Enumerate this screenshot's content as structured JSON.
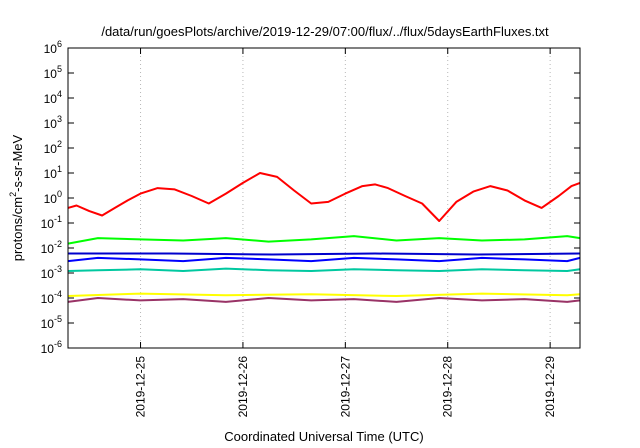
{
  "chart_data": {
    "type": "line",
    "title": "/data/run/goesPlots/archive/2019-12-29/07:00/flux/../flux/5daysEarthFluxes.txt",
    "xlabel": "Coordinated Universal Time (UTC)",
    "ylabel": {
      "prefix": "protons/cm",
      "superscript": "2",
      "suffix": "-s-sr-MeV"
    },
    "y_scale": "log",
    "ylim": [
      1e-06,
      1000000.0
    ],
    "y_ticks": [
      {
        "value": 1e-06,
        "base": "10",
        "exp": "-6"
      },
      {
        "value": 1e-05,
        "base": "10",
        "exp": "-5"
      },
      {
        "value": 0.0001,
        "base": "10",
        "exp": "-4"
      },
      {
        "value": 0.001,
        "base": "10",
        "exp": "-3"
      },
      {
        "value": 0.01,
        "base": "10",
        "exp": "-2"
      },
      {
        "value": 0.1,
        "base": "10",
        "exp": "-1"
      },
      {
        "value": 1,
        "base": "10",
        "exp": "0"
      },
      {
        "value": 10,
        "base": "10",
        "exp": "1"
      },
      {
        "value": 100,
        "base": "10",
        "exp": "2"
      },
      {
        "value": 1000,
        "base": "10",
        "exp": "3"
      },
      {
        "value": 10000,
        "base": "10",
        "exp": "4"
      },
      {
        "value": 100000,
        "base": "10",
        "exp": "5"
      },
      {
        "value": 1000000,
        "base": "10",
        "exp": "6"
      }
    ],
    "xlim": [
      "2019-12-24T07:00",
      "2019-12-29T07:00"
    ],
    "x_ticks": [
      {
        "value": "2019-12-25T00:00",
        "label": "2019-12-25"
      },
      {
        "value": "2019-12-26T00:00",
        "label": "2019-12-26"
      },
      {
        "value": "2019-12-27T00:00",
        "label": "2019-12-27"
      },
      {
        "value": "2019-12-28T00:00",
        "label": "2019-12-28"
      },
      {
        "value": "2019-12-29T00:00",
        "label": "2019-12-29"
      }
    ],
    "grid": true,
    "series": [
      {
        "color": "#ff0000",
        "x": [
          "2019-12-24T07:00",
          "2019-12-24T09:00",
          "2019-12-24T12:00",
          "2019-12-24T15:00",
          "2019-12-24T18:00",
          "2019-12-24T21:00",
          "2019-12-25T00:00",
          "2019-12-25T04:00",
          "2019-12-25T08:00",
          "2019-12-25T12:00",
          "2019-12-25T16:00",
          "2019-12-25T20:00",
          "2019-12-26T00:00",
          "2019-12-26T04:00",
          "2019-12-26T08:00",
          "2019-12-26T12:00",
          "2019-12-26T16:00",
          "2019-12-26T20:00",
          "2019-12-27T00:00",
          "2019-12-27T04:00",
          "2019-12-27T07:00",
          "2019-12-27T10:00",
          "2019-12-27T14:00",
          "2019-12-27T18:00",
          "2019-12-27T22:00",
          "2019-12-28T02:00",
          "2019-12-28T06:00",
          "2019-12-28T10:00",
          "2019-12-28T14:00",
          "2019-12-28T18:00",
          "2019-12-28T22:00",
          "2019-12-29T02:00",
          "2019-12-29T05:00",
          "2019-12-29T07:00"
        ],
        "y": [
          0.4,
          0.5,
          0.3,
          0.2,
          0.4,
          0.8,
          1.5,
          2.5,
          2.2,
          1.2,
          0.6,
          1.5,
          4,
          10,
          7,
          2,
          0.6,
          0.7,
          1.5,
          3,
          3.5,
          2.5,
          1.2,
          0.6,
          0.12,
          0.7,
          1.8,
          3,
          2,
          0.8,
          0.4,
          1.2,
          3,
          4
        ]
      },
      {
        "color": "#00ff00",
        "x": [
          "2019-12-24T07:00",
          "2019-12-24T14:00",
          "2019-12-25T00:00",
          "2019-12-25T10:00",
          "2019-12-25T20:00",
          "2019-12-26T06:00",
          "2019-12-26T16:00",
          "2019-12-27T02:00",
          "2019-12-27T12:00",
          "2019-12-27T22:00",
          "2019-12-28T08:00",
          "2019-12-28T18:00",
          "2019-12-29T04:00",
          "2019-12-29T07:00"
        ],
        "y": [
          0.015,
          0.025,
          0.022,
          0.02,
          0.025,
          0.018,
          0.022,
          0.03,
          0.02,
          0.025,
          0.02,
          0.022,
          0.03,
          0.025
        ]
      },
      {
        "color": "#0000ff",
        "x": [
          "2019-12-24T07:00",
          "2019-12-24T14:00",
          "2019-12-25T00:00",
          "2019-12-25T10:00",
          "2019-12-25T20:00",
          "2019-12-26T06:00",
          "2019-12-26T16:00",
          "2019-12-27T02:00",
          "2019-12-27T12:00",
          "2019-12-27T22:00",
          "2019-12-28T08:00",
          "2019-12-28T18:00",
          "2019-12-29T04:00",
          "2019-12-29T07:00"
        ],
        "y": [
          0.003,
          0.004,
          0.0035,
          0.003,
          0.004,
          0.0035,
          0.003,
          0.004,
          0.0035,
          0.003,
          0.004,
          0.0035,
          0.003,
          0.004
        ]
      },
      {
        "color": "#0000cc",
        "x": [
          "2019-12-24T07:00",
          "2019-12-25T07:00",
          "2019-12-26T07:00",
          "2019-12-27T07:00",
          "2019-12-28T07:00",
          "2019-12-29T07:00"
        ],
        "y": [
          0.006,
          0.006,
          0.0055,
          0.006,
          0.0055,
          0.006
        ]
      },
      {
        "color": "#00c8a0",
        "x": [
          "2019-12-24T07:00",
          "2019-12-24T14:00",
          "2019-12-25T00:00",
          "2019-12-25T10:00",
          "2019-12-25T20:00",
          "2019-12-26T06:00",
          "2019-12-26T16:00",
          "2019-12-27T02:00",
          "2019-12-27T12:00",
          "2019-12-27T22:00",
          "2019-12-28T08:00",
          "2019-12-28T18:00",
          "2019-12-29T04:00",
          "2019-12-29T07:00"
        ],
        "y": [
          0.0012,
          0.0013,
          0.0014,
          0.0012,
          0.0015,
          0.0013,
          0.0012,
          0.0014,
          0.0013,
          0.0012,
          0.0014,
          0.0013,
          0.0012,
          0.0014
        ]
      },
      {
        "color": "#ffff00",
        "x": [
          "2019-12-24T07:00",
          "2019-12-25T00:00",
          "2019-12-25T20:00",
          "2019-12-26T16:00",
          "2019-12-27T12:00",
          "2019-12-28T08:00",
          "2019-12-29T04:00",
          "2019-12-29T07:00"
        ],
        "y": [
          0.00012,
          0.00015,
          0.00013,
          0.00014,
          0.00012,
          0.00015,
          0.00013,
          0.00014
        ]
      },
      {
        "color": "#993366",
        "x": [
          "2019-12-24T07:00",
          "2019-12-24T14:00",
          "2019-12-25T00:00",
          "2019-12-25T10:00",
          "2019-12-25T20:00",
          "2019-12-26T06:00",
          "2019-12-26T16:00",
          "2019-12-27T02:00",
          "2019-12-27T12:00",
          "2019-12-27T22:00",
          "2019-12-28T08:00",
          "2019-12-28T18:00",
          "2019-12-29T04:00",
          "2019-12-29T07:00"
        ],
        "y": [
          7e-05,
          0.0001,
          8e-05,
          9e-05,
          7e-05,
          0.0001,
          8e-05,
          9e-05,
          7e-05,
          0.0001,
          8e-05,
          9e-05,
          7e-05,
          8e-05
        ]
      }
    ]
  }
}
